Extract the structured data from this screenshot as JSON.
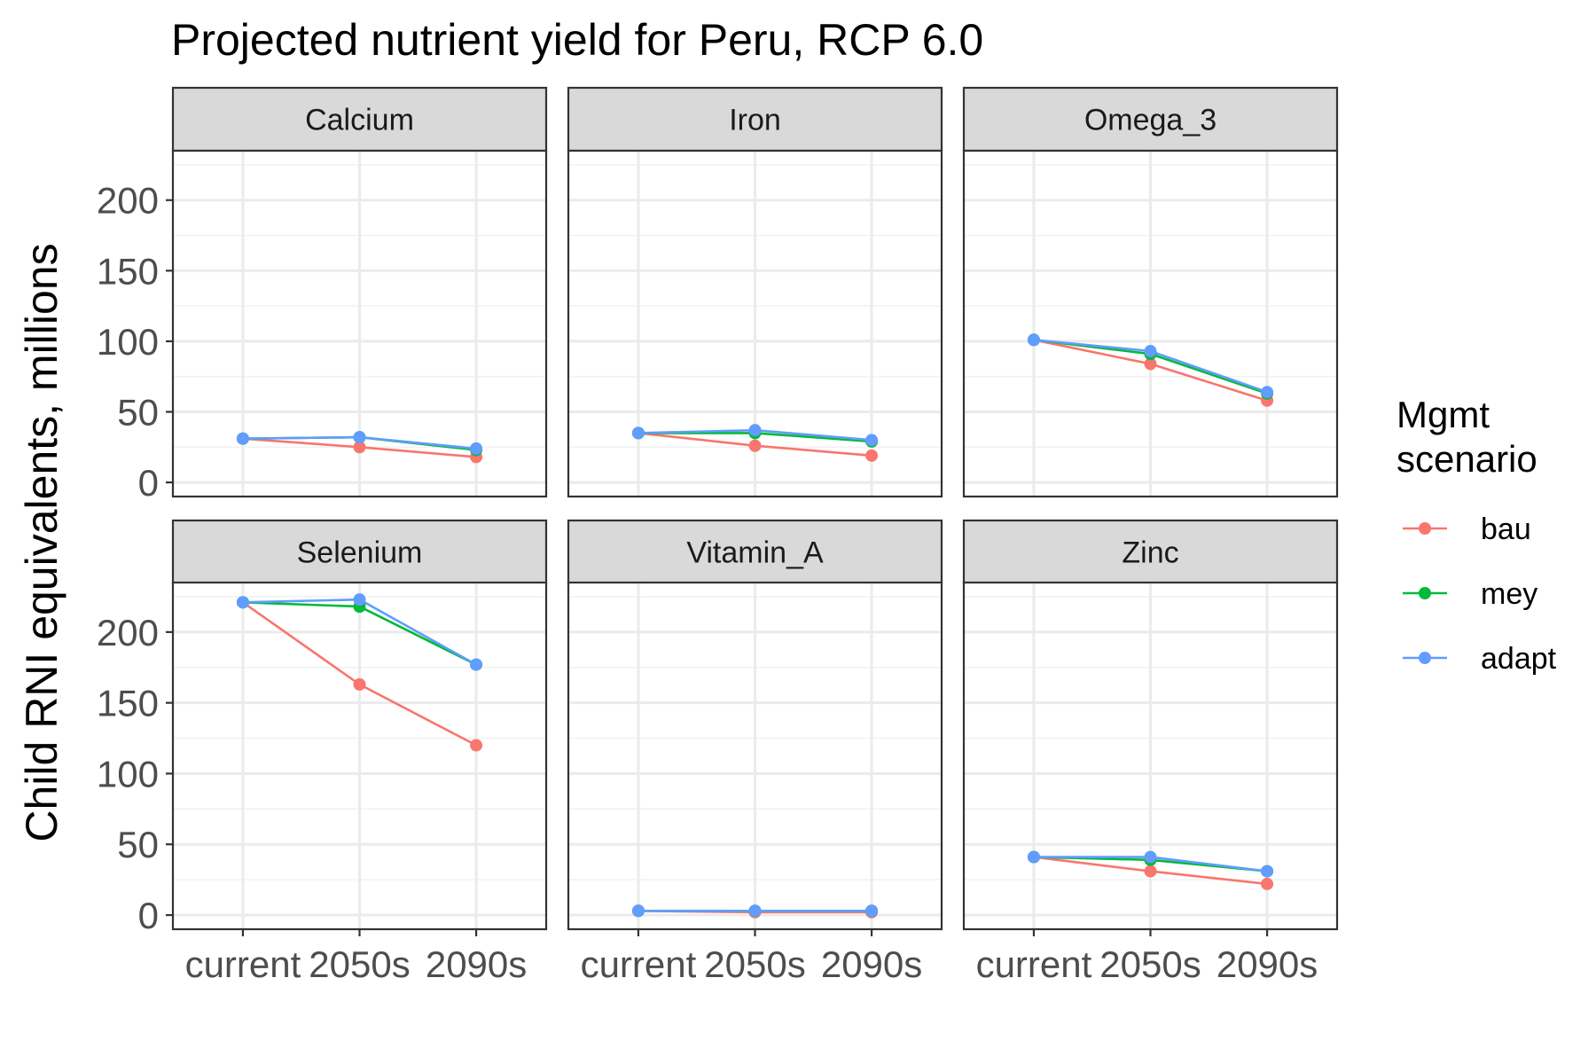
{
  "chart_data": {
    "type": "line",
    "title": "Projected nutrient yield for Peru, RCP 6.0",
    "ylabel": "Child RNI equivalents, millions",
    "xlabel": "",
    "categories": [
      "current",
      "2050s",
      "2090s"
    ],
    "yticks": [
      0,
      50,
      100,
      150,
      200
    ],
    "ylim": [
      -10,
      235
    ],
    "grid": true,
    "legend": {
      "title_lines": [
        "Mgmt",
        "scenario"
      ],
      "placement": "right",
      "entries": [
        {
          "name": "bau",
          "color": "#F8766D"
        },
        {
          "name": "mey",
          "color": "#00BA38"
        },
        {
          "name": "adapt",
          "color": "#619CFF"
        }
      ]
    },
    "panels": [
      {
        "name": "Calcium",
        "series": [
          {
            "name": "bau",
            "values": [
              31,
              25,
              18
            ]
          },
          {
            "name": "mey",
            "values": [
              31,
              32,
              23
            ]
          },
          {
            "name": "adapt",
            "values": [
              31,
              32,
              24
            ]
          }
        ]
      },
      {
        "name": "Iron",
        "series": [
          {
            "name": "bau",
            "values": [
              35,
              26,
              19
            ]
          },
          {
            "name": "mey",
            "values": [
              35,
              35,
              29
            ]
          },
          {
            "name": "adapt",
            "values": [
              35,
              37,
              30
            ]
          }
        ]
      },
      {
        "name": "Omega_3",
        "series": [
          {
            "name": "bau",
            "values": [
              101,
              84,
              58
            ]
          },
          {
            "name": "mey",
            "values": [
              101,
              91,
              63
            ]
          },
          {
            "name": "adapt",
            "values": [
              101,
              93,
              64
            ]
          }
        ]
      },
      {
        "name": "Selenium",
        "series": [
          {
            "name": "bau",
            "values": [
              221,
              163,
              120
            ]
          },
          {
            "name": "mey",
            "values": [
              221,
              218,
              177
            ]
          },
          {
            "name": "adapt",
            "values": [
              221,
              223,
              177
            ]
          }
        ]
      },
      {
        "name": "Vitamin_A",
        "series": [
          {
            "name": "bau",
            "values": [
              3,
              2,
              2
            ]
          },
          {
            "name": "mey",
            "values": [
              3,
              3,
              3
            ]
          },
          {
            "name": "adapt",
            "values": [
              3,
              3,
              3
            ]
          }
        ]
      },
      {
        "name": "Zinc",
        "series": [
          {
            "name": "bau",
            "values": [
              41,
              31,
              22
            ]
          },
          {
            "name": "mey",
            "values": [
              41,
              39,
              31
            ]
          },
          {
            "name": "adapt",
            "values": [
              41,
              41,
              31
            ]
          }
        ]
      }
    ]
  }
}
